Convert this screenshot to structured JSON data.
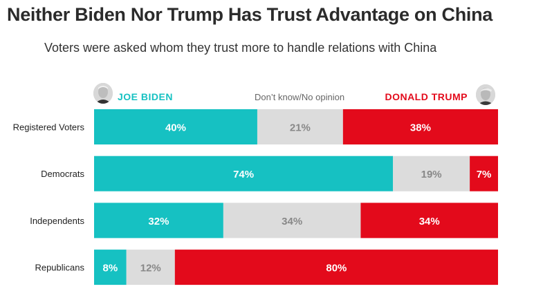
{
  "title": "Neither Biden Nor Trump Has Trust Advantage on China",
  "subtitle": "Voters were asked whom they trust more to handle relations with China",
  "colors": {
    "biden": "#16c1c2",
    "neutral": "#dcdcdc",
    "trump": "#e30a1b",
    "neutral_text": "#888888"
  },
  "chart_data": {
    "type": "bar",
    "orientation": "horizontal-stacked-100",
    "title": "Neither Biden Nor Trump Has Trust Advantage on China",
    "subtitle": "Voters were asked whom they trust more to handle relations with China",
    "categories": [
      "Registered Voters",
      "Democrats",
      "Independents",
      "Republicans"
    ],
    "series": [
      {
        "name": "JOE BIDEN",
        "values": [
          40,
          74,
          32,
          8
        ],
        "labels": [
          "40%",
          "74%",
          "32%",
          "8%"
        ]
      },
      {
        "name": "Don’t know/No opinion",
        "values": [
          21,
          19,
          34,
          12
        ],
        "labels": [
          "21%",
          "19%",
          "34%",
          "12%"
        ]
      },
      {
        "name": "DONALD TRUMP",
        "values": [
          38,
          7,
          34,
          80
        ],
        "labels": [
          "38%",
          "7%",
          "34%",
          "80%"
        ]
      }
    ],
    "legend": "top",
    "grid": false
  }
}
